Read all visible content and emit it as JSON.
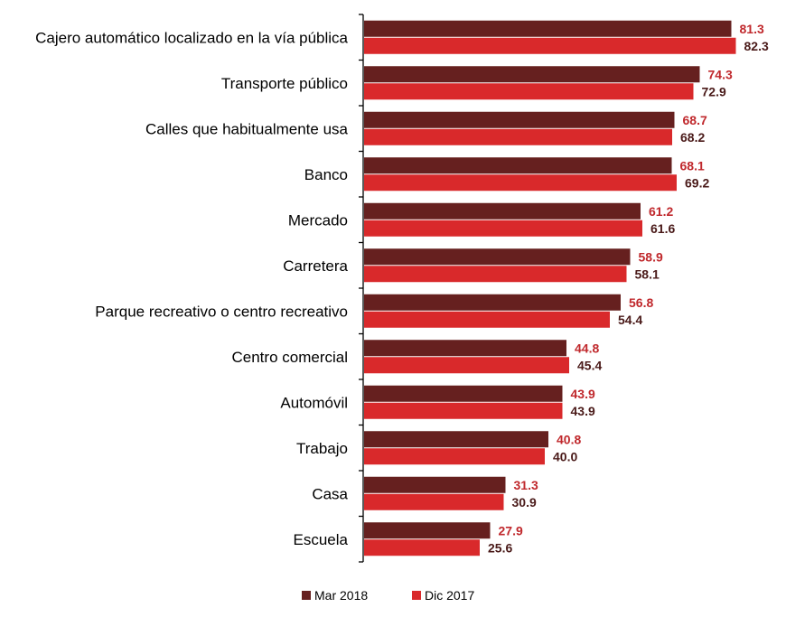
{
  "chart_data": {
    "type": "bar",
    "orientation": "horizontal",
    "title": "",
    "xlabel": "",
    "ylabel": "",
    "xlim": [
      0,
      90
    ],
    "grid": false,
    "legend_position": "bottom",
    "categories": [
      "Cajero automático localizado en la vía pública",
      "Transporte público",
      "Calles que habitualmente usa",
      "Banco",
      "Mercado",
      "Carretera",
      "Parque recreativo o centro recreativo",
      "Centro comercial",
      "Automóvil",
      "Trabajo",
      "Casa",
      "Escuela"
    ],
    "series": [
      {
        "name": "Mar 2018",
        "color": "#66201F",
        "label_color": "#C0282C",
        "values": [
          81.3,
          74.3,
          68.7,
          68.1,
          61.2,
          58.9,
          56.8,
          44.8,
          43.9,
          40.8,
          31.3,
          27.9
        ],
        "labels": [
          "81.3",
          "74.3",
          "68.7",
          "68.1",
          "61.2",
          "58.9",
          "56.8",
          "44.8",
          "43.9",
          "40.8",
          "31.3",
          "27.9"
        ]
      },
      {
        "name": "Dic 2017",
        "color": "#D9292B",
        "label_color": "#4A1A19",
        "values": [
          82.3,
          72.9,
          68.2,
          69.2,
          61.6,
          58.1,
          54.4,
          45.4,
          43.9,
          40.0,
          30.9,
          25.6
        ],
        "labels": [
          "82.3",
          "72.9",
          "68.2",
          "69.2",
          "61.6",
          "58.1",
          "54.4",
          "45.4",
          "43.9",
          "40.0",
          "30.9",
          "25.6"
        ]
      }
    ]
  }
}
